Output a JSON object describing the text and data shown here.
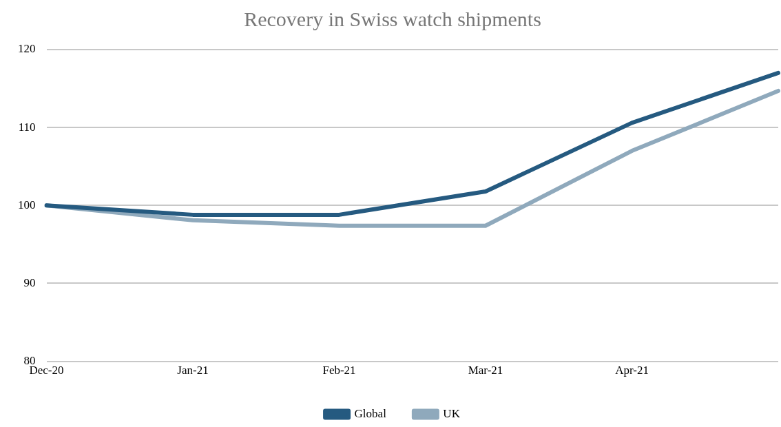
{
  "chart_data": {
    "type": "line",
    "title": "Recovery in Swiss watch shipments",
    "categories": [
      "Dec-20",
      "Jan-21",
      "Feb-21",
      "Mar-21",
      "Apr-21",
      null
    ],
    "series": [
      {
        "name": "Global",
        "color": "#255a80",
        "values": [
          100,
          98.8,
          98.8,
          101.8,
          110.6,
          117.0
        ]
      },
      {
        "name": "UK",
        "color": "#8fa9bc",
        "values": [
          100,
          98.1,
          97.4,
          97.4,
          107.0,
          114.7
        ]
      }
    ],
    "ylim": [
      80,
      120
    ],
    "yticks": [
      80,
      90,
      100,
      110,
      120
    ],
    "grid": "y",
    "legend": "bottom",
    "marker": "none",
    "line_style": "solid"
  }
}
